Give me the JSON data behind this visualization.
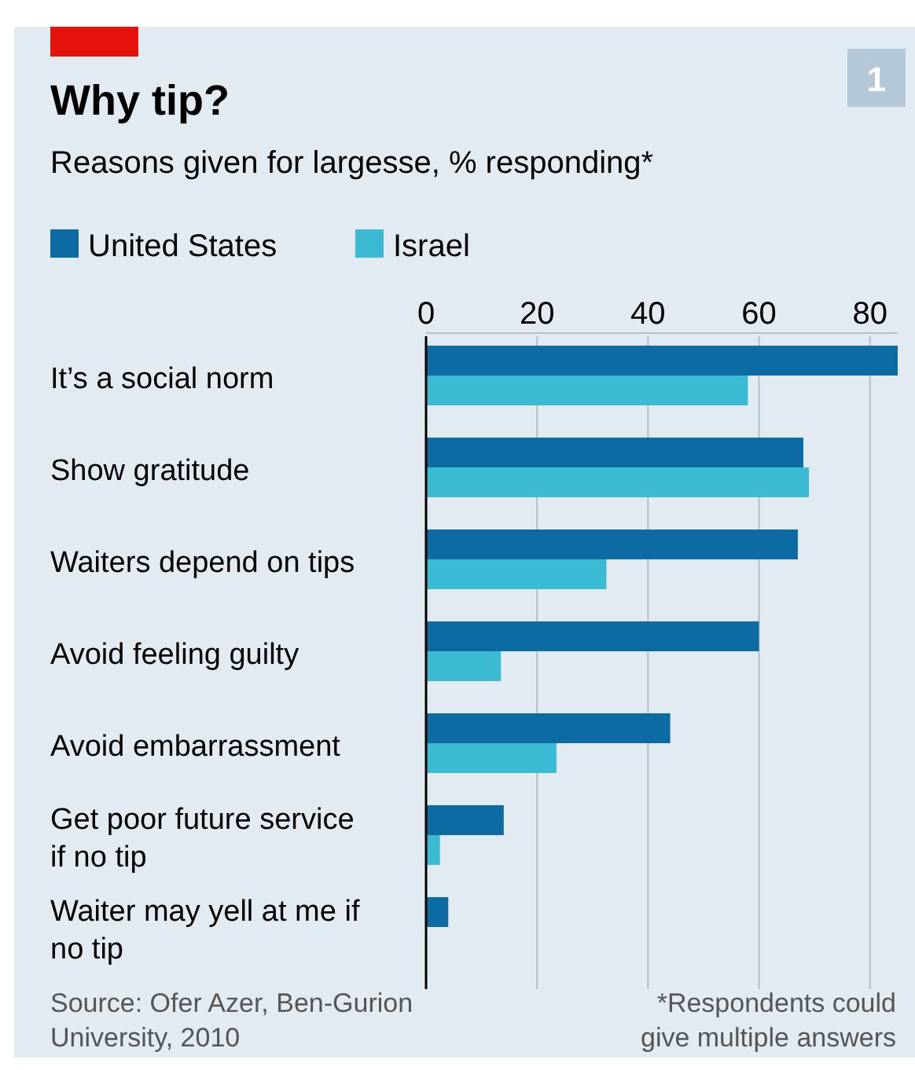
{
  "chart_data": {
    "type": "bar",
    "orientation": "horizontal",
    "title": "Why tip?",
    "subtitle": "Reasons given for largesse, % responding*",
    "categories": [
      "It’s a social norm",
      "Show gratitude",
      "Waiters depend on tips",
      "Avoid feeling guilty",
      "Avoid embarrassment",
      "Get poor future service if no tip",
      "Waiter may yell at me if no tip"
    ],
    "series": [
      {
        "name": "United States",
        "color": "#0d6ba3",
        "values": [
          85,
          68,
          67,
          60,
          44,
          14,
          4
        ]
      },
      {
        "name": "Israel",
        "color": "#3bbbd3",
        "values": [
          58,
          69,
          32.5,
          13.5,
          23.5,
          2.5,
          null
        ]
      }
    ],
    "xlim": [
      0,
      85
    ],
    "xticks": [
      0,
      20,
      40,
      60,
      80
    ],
    "grid": "x",
    "legend": "top left",
    "annotations": [
      "1",
      "Source: Ofer Azer, Ben-Gurion University, 2010",
      "*Respondents could give multiple answers"
    ]
  }
}
